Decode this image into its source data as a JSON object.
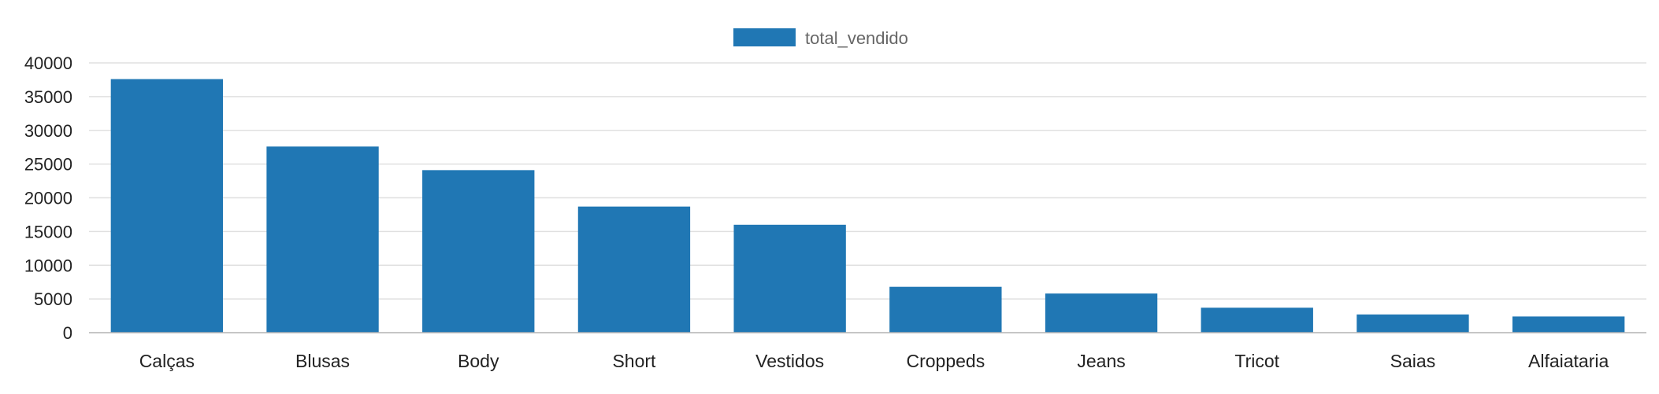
{
  "chart_data": {
    "type": "bar",
    "title": "",
    "xlabel": "",
    "ylabel": "",
    "legend_position": "top-center",
    "grid": true,
    "ylim": [
      0,
      40000
    ],
    "yticks": [
      0,
      5000,
      10000,
      15000,
      20000,
      25000,
      30000,
      35000,
      40000
    ],
    "categories": [
      "Calças",
      "Blusas",
      "Body",
      "Short",
      "Vestidos",
      "Croppeds",
      "Jeans",
      "Tricot",
      "Saias",
      "Alfaiataria"
    ],
    "series": [
      {
        "name": "total_vendido",
        "color": "#2077b4",
        "values": [
          37600,
          27600,
          24100,
          18700,
          16000,
          6800,
          5800,
          3700,
          2700,
          2400
        ]
      }
    ]
  }
}
